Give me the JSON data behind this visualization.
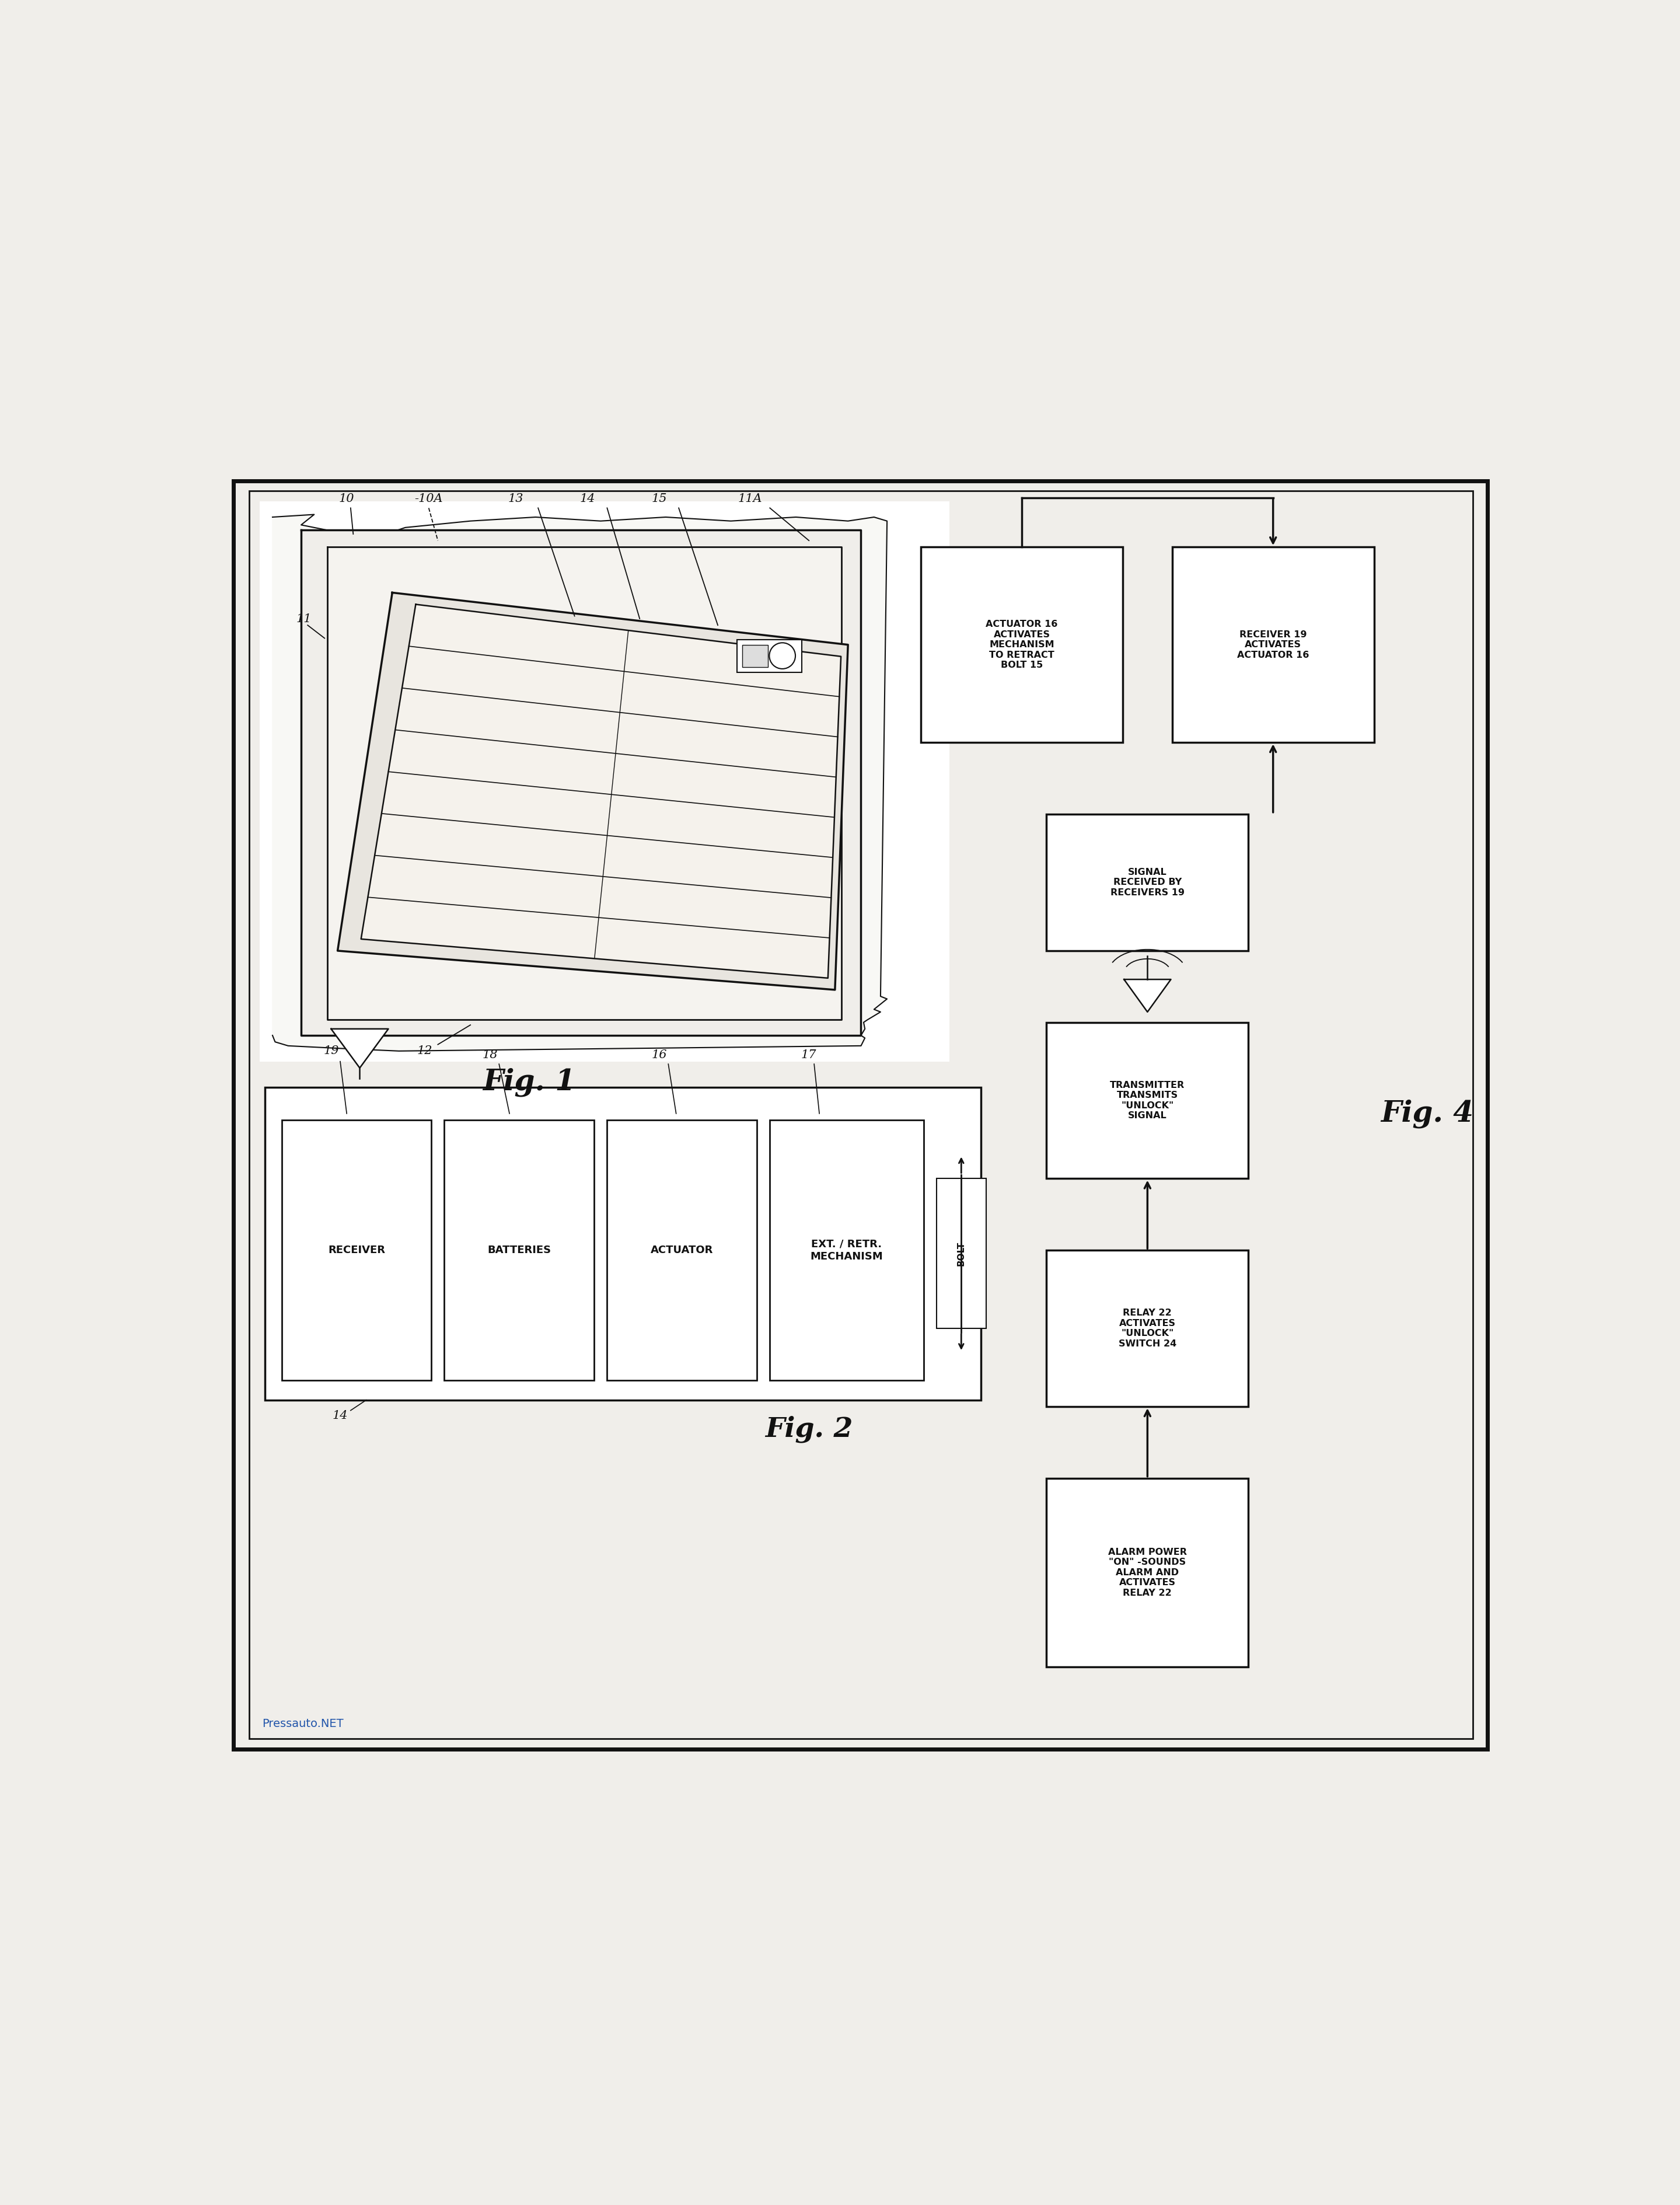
{
  "bg_color": "#f0eeea",
  "border_color": "#111111",
  "box_color": "#ffffff",
  "text_color": "#111111",
  "line_color": "#111111",
  "fig1_label": "Fig. 1",
  "fig2_label": "Fig. 2",
  "fig4_label": "Fig. 4",
  "watermark": "Pressauto.NET",
  "fig4_boxes": [
    {
      "label": "ACTUATOR 16\nACTIVATES\nMECHANISM\nTO RETRACT\nBOLT 15",
      "col": 0,
      "row": 0
    },
    {
      "label": "RECEIVER 19\nACTIVATES\nACTUATOR 16",
      "col": 1,
      "row": 0
    },
    {
      "label": "SIGNAL\nRECEIVED BY\nRECEIVERS 19",
      "col": 1,
      "row": 1
    },
    {
      "label": "TRANSMITTER\nTRANSMITS\n\"UNLOCK\"\nSIGNAL",
      "col": 1,
      "row": 2
    },
    {
      "label": "RELAY 22\nACTIVATES\n\"UNLOCK\"\nSWITCH 24",
      "col": 1,
      "row": 3
    },
    {
      "label": "ALARM POWER\n\"ON\" -SOUNDS\nALARM AND\nACTIVATES\nRELAY 22",
      "col": 1,
      "row": 4
    }
  ]
}
